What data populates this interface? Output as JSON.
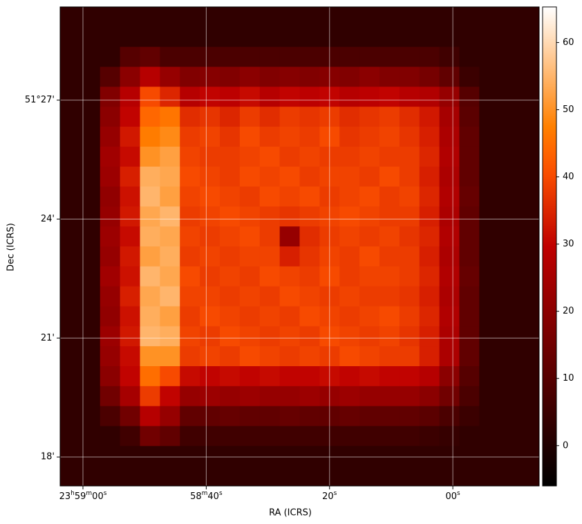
{
  "chart_data": {
    "type": "heatmap",
    "x_label": "RA (ICRS)",
    "y_label": "Dec (ICRS)",
    "xlim": [
      123.7,
      46.0
    ],
    "xticks": [
      {
        "value": 120,
        "label": "23h59m00s"
      },
      {
        "value": 100,
        "label": "58m40s"
      },
      {
        "value": 80,
        "label": "20s"
      },
      {
        "value": 60,
        "label": "00s"
      }
    ],
    "ylim": [
      17.27,
      29.35
    ],
    "yticks": [
      {
        "value": 27,
        "label": "51°27'"
      },
      {
        "value": 24,
        "label": "24'"
      },
      {
        "value": 21,
        "label": "21'"
      },
      {
        "value": 18,
        "label": "18'"
      }
    ],
    "grid": true,
    "colormap": "gist_heat",
    "clim": [
      -6,
      65.3
    ],
    "cticks": [
      0,
      10,
      20,
      30,
      40,
      50,
      60
    ],
    "z": [
      [
        3,
        3,
        3,
        3,
        3,
        3,
        3,
        3,
        3,
        3,
        3,
        3,
        3,
        3,
        3,
        3,
        3,
        3,
        3,
        3,
        3,
        3,
        3,
        3
      ],
      [
        3,
        3,
        3,
        3,
        3,
        3,
        3,
        3,
        3,
        3,
        3,
        3,
        3,
        3,
        3,
        3,
        3,
        3,
        3,
        3,
        3,
        3,
        3,
        3
      ],
      [
        3,
        3,
        3,
        10,
        12,
        8,
        8,
        8,
        8,
        8,
        8,
        8,
        8,
        8,
        8,
        8,
        8,
        8,
        8,
        6,
        3,
        3,
        3,
        3
      ],
      [
        3,
        3,
        10,
        20,
        28,
        22,
        18,
        19,
        18,
        20,
        18,
        19,
        18,
        19,
        18,
        20,
        18,
        18,
        16,
        12,
        5,
        3,
        3,
        3
      ],
      [
        3,
        3,
        18,
        28,
        40,
        35,
        28,
        30,
        29,
        31,
        28,
        30,
        29,
        30,
        28,
        29,
        30,
        28,
        27,
        22,
        10,
        3,
        3,
        3
      ],
      [
        3,
        3,
        20,
        30,
        44,
        46,
        36,
        37,
        35,
        38,
        36,
        38,
        37,
        38,
        36,
        37,
        38,
        36,
        33,
        25,
        11,
        3,
        3,
        3
      ],
      [
        3,
        3,
        22,
        33,
        47,
        49,
        38,
        39,
        37,
        40,
        38,
        39,
        38,
        40,
        37,
        38,
        39,
        37,
        34,
        26,
        12,
        3,
        3,
        3
      ],
      [
        3,
        3,
        24,
        31,
        50,
        52,
        39,
        38,
        38,
        39,
        40,
        38,
        39,
        38,
        38,
        39,
        38,
        38,
        35,
        27,
        12,
        3,
        3,
        3
      ],
      [
        3,
        3,
        23,
        34,
        54,
        53,
        40,
        39,
        38,
        40,
        39,
        40,
        38,
        39,
        39,
        38,
        40,
        38,
        34,
        26,
        12,
        3,
        3,
        3
      ],
      [
        3,
        3,
        21,
        32,
        55,
        52,
        39,
        40,
        39,
        38,
        40,
        39,
        40,
        38,
        39,
        40,
        38,
        39,
        35,
        27,
        13,
        3,
        3,
        3
      ],
      [
        3,
        3,
        22,
        33,
        53,
        55,
        38,
        39,
        40,
        39,
        38,
        37,
        38,
        39,
        40,
        39,
        38,
        38,
        34,
        26,
        12,
        3,
        3,
        3
      ],
      [
        3,
        3,
        23,
        31,
        54,
        53,
        39,
        38,
        39,
        40,
        38,
        22,
        36,
        38,
        39,
        38,
        39,
        37,
        35,
        27,
        12,
        3,
        3,
        3
      ],
      [
        3,
        3,
        22,
        33,
        52,
        54,
        38,
        39,
        38,
        39,
        39,
        34,
        37,
        39,
        38,
        40,
        38,
        38,
        34,
        26,
        12,
        3,
        3,
        3
      ],
      [
        3,
        3,
        24,
        32,
        55,
        53,
        40,
        38,
        39,
        38,
        40,
        39,
        38,
        40,
        38,
        39,
        39,
        38,
        35,
        27,
        13,
        3,
        3,
        3
      ],
      [
        3,
        3,
        22,
        34,
        53,
        55,
        39,
        39,
        38,
        39,
        38,
        40,
        39,
        38,
        39,
        38,
        38,
        37,
        34,
        26,
        12,
        3,
        3,
        3
      ],
      [
        3,
        3,
        21,
        32,
        54,
        52,
        38,
        40,
        39,
        38,
        39,
        38,
        40,
        39,
        38,
        39,
        40,
        38,
        35,
        27,
        12,
        3,
        3,
        3
      ],
      [
        3,
        3,
        23,
        33,
        55,
        54,
        39,
        38,
        40,
        39,
        38,
        39,
        38,
        40,
        39,
        38,
        39,
        37,
        34,
        26,
        12,
        3,
        3,
        3
      ],
      [
        3,
        3,
        22,
        31,
        50,
        50,
        38,
        39,
        38,
        40,
        39,
        38,
        39,
        38,
        40,
        39,
        38,
        38,
        34,
        26,
        12,
        3,
        3,
        3
      ],
      [
        3,
        3,
        20,
        30,
        45,
        40,
        31,
        30,
        31,
        30,
        31,
        30,
        30,
        31,
        30,
        31,
        30,
        30,
        28,
        20,
        10,
        3,
        3,
        3
      ],
      [
        3,
        3,
        15,
        25,
        38,
        30,
        22,
        23,
        22,
        23,
        22,
        22,
        23,
        22,
        23,
        22,
        22,
        22,
        20,
        15,
        8,
        3,
        3,
        3
      ],
      [
        3,
        3,
        8,
        15,
        28,
        22,
        12,
        12,
        13,
        12,
        12,
        13,
        12,
        12,
        13,
        12,
        12,
        12,
        11,
        8,
        5,
        3,
        3,
        3
      ],
      [
        3,
        3,
        3,
        6,
        15,
        12,
        6,
        6,
        6,
        6,
        6,
        6,
        6,
        6,
        6,
        6,
        6,
        6,
        5,
        4,
        3,
        3,
        3,
        3
      ],
      [
        3,
        3,
        3,
        3,
        3,
        3,
        3,
        3,
        3,
        3,
        3,
        3,
        3,
        3,
        3,
        3,
        3,
        3,
        3,
        3,
        3,
        3,
        3,
        3
      ],
      [
        3,
        3,
        3,
        3,
        3,
        3,
        3,
        3,
        3,
        3,
        3,
        3,
        3,
        3,
        3,
        3,
        3,
        3,
        3,
        3,
        3,
        3,
        3,
        3
      ]
    ]
  }
}
